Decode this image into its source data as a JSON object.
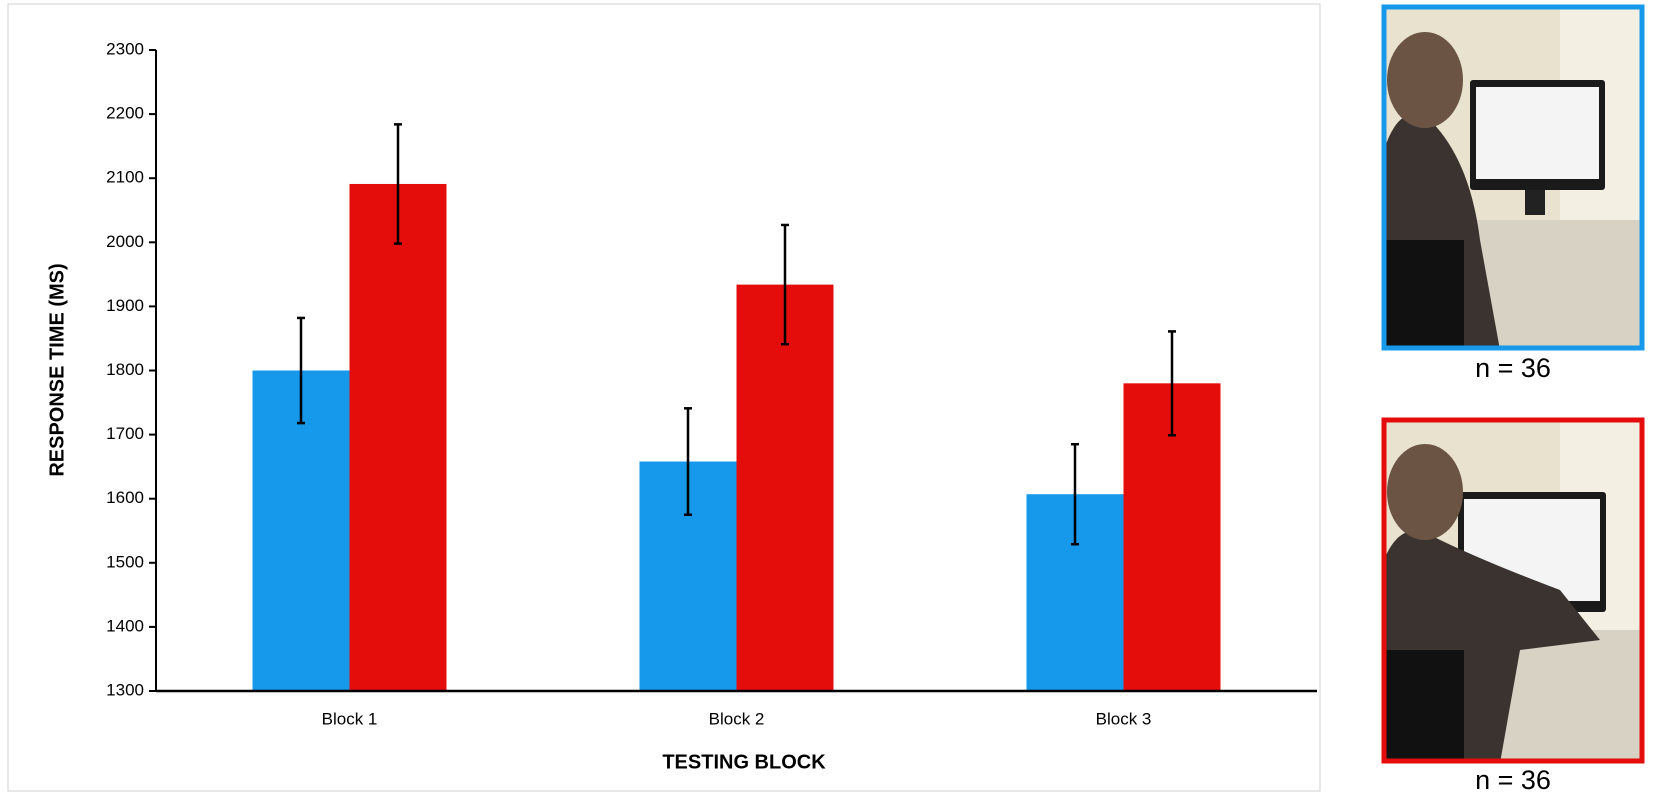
{
  "chart_data": {
    "type": "bar",
    "x_label": "TESTING BLOCK",
    "y_label": "RESPONSE TIME (MS)",
    "categories": [
      "Block 1",
      "Block 2",
      "Block 3"
    ],
    "series": [
      {
        "color": "#1699ea",
        "values": [
          1800,
          1658,
          1607
        ],
        "errors": [
          82,
          83,
          78
        ]
      },
      {
        "color": "#e50c0c",
        "values": [
          2091,
          1934,
          1780
        ],
        "errors": [
          93,
          93,
          81
        ]
      }
    ],
    "ylim": [
      1300,
      2300
    ],
    "yticks": [
      1300,
      1400,
      1500,
      1600,
      1700,
      1800,
      1900,
      2000,
      2100,
      2200,
      2300
    ]
  },
  "panels": [
    {
      "caption": "n = 36"
    },
    {
      "caption": "n = 36"
    }
  ]
}
